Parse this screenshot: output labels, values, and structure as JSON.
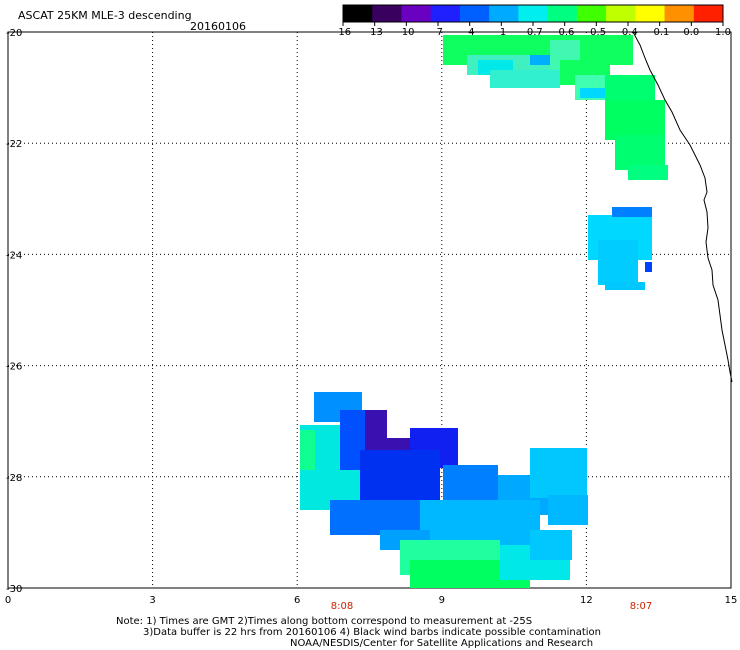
{
  "header": {
    "title": "ASCAT 25KM MLE-3 descending",
    "date": "20160106"
  },
  "colorbar": {
    "labels": [
      "-16",
      "-13",
      "-10",
      "-7",
      "-4",
      "-1",
      "-0.7",
      "-0.6",
      "-0.5",
      "-0.4",
      "-0.1",
      "0.0",
      "1.0"
    ],
    "colors": [
      "#000000",
      "#3a0060",
      "#6a00c0",
      "#2020ff",
      "#0060ff",
      "#00aaff",
      "#00eeee",
      "#00ff80",
      "#40ff00",
      "#c0ff00",
      "#ffff00",
      "#ff9000",
      "#ff2000"
    ]
  },
  "map": {
    "y_axis": {
      "ticks": [
        "-20",
        "-22",
        "-24",
        "-26",
        "-28",
        "-30"
      ]
    },
    "x_axis": {
      "ticks": [
        "0",
        "3",
        "6",
        "9",
        "12",
        "15"
      ]
    },
    "pass_times": [
      "8:08",
      "8:07"
    ],
    "colors": {
      "time_label": "#cc2200",
      "grid": "#000000",
      "coast": "#000000"
    }
  },
  "notes": {
    "line1": "Note: 1) Times are GMT 2)Times along bottom correspond to measurement at -25S",
    "line2": "3)Data buffer is 22 hrs from 20160106 4) Black wind barbs indicate possible contamination",
    "line3": "NOAA/NESDIS/Center for Satellite Applications and Research"
  }
}
